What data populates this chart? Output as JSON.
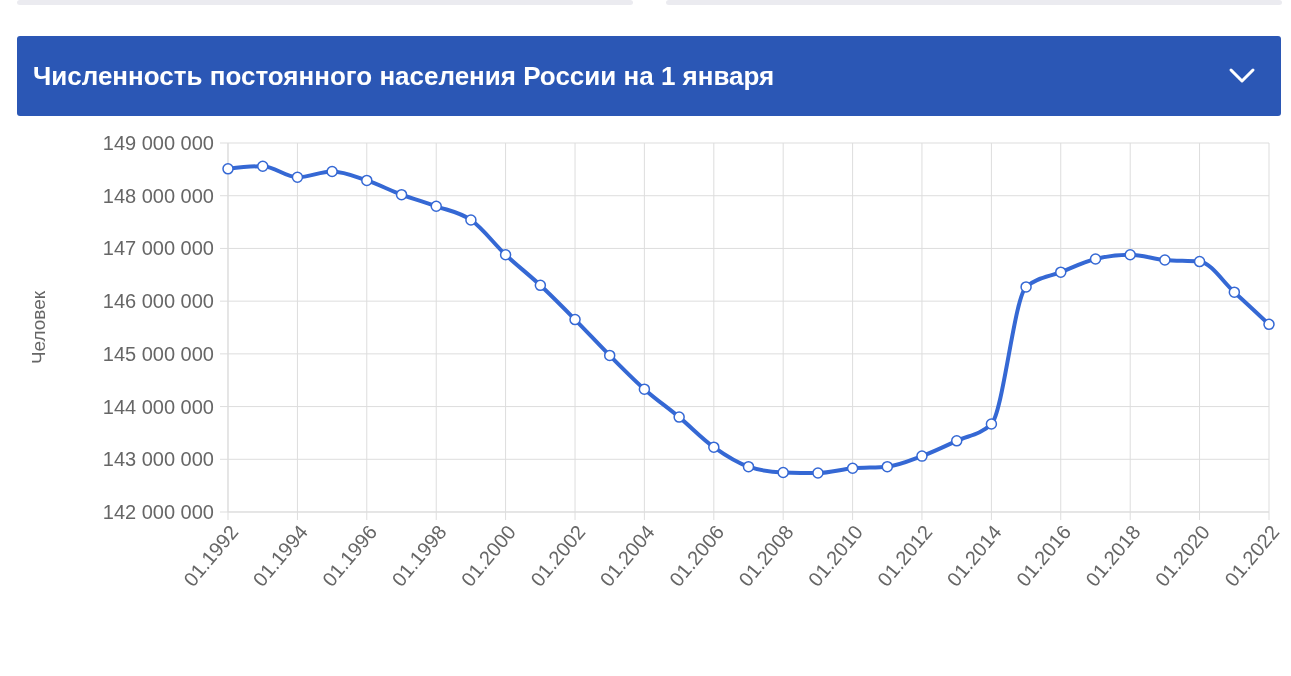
{
  "chart_data": {
    "type": "line",
    "title": "Численность постоянного населения России на 1 января",
    "ylabel": "Человек",
    "x": [
      "1992-01",
      "1993-01",
      "1994-01",
      "1995-01",
      "1996-01",
      "1997-01",
      "1998-01",
      "1999-01",
      "2000-01",
      "2001-01",
      "2002-01",
      "2003-01",
      "2004-01",
      "2005-01",
      "2006-01",
      "2007-01",
      "2008-01",
      "2009-01",
      "2010-01",
      "2011-01",
      "2012-01",
      "2013-01",
      "2014-01",
      "2015-01",
      "2016-01",
      "2017-01",
      "2018-01",
      "2019-01",
      "2020-01",
      "2021-01",
      "2022-01"
    ],
    "series": [
      {
        "color": "#3568d4",
        "values": [
          148510000,
          148560000,
          148350000,
          148460000,
          148290000,
          148020000,
          147800000,
          147540000,
          146880000,
          146300000,
          145650000,
          144970000,
          144330000,
          143800000,
          143230000,
          142860000,
          142750000,
          142740000,
          142830000,
          142860000,
          143060000,
          143350000,
          143670000,
          146270000,
          146550000,
          146800000,
          146880000,
          146780000,
          146750000,
          146170000,
          145560000
        ]
      }
    ],
    "xlim": [
      "1992-01",
      "2022-01"
    ],
    "xticks": [
      {
        "value": "1992-01",
        "label": "01.1992"
      },
      {
        "value": "1994-01",
        "label": "01.1994"
      },
      {
        "value": "1996-01",
        "label": "01.1996"
      },
      {
        "value": "1998-01",
        "label": "01.1998"
      },
      {
        "value": "2000-01",
        "label": "01.2000"
      },
      {
        "value": "2002-01",
        "label": "01.2002"
      },
      {
        "value": "2004-01",
        "label": "01.2004"
      },
      {
        "value": "2006-01",
        "label": "01.2006"
      },
      {
        "value": "2008-01",
        "label": "01.2008"
      },
      {
        "value": "2010-01",
        "label": "01.2010"
      },
      {
        "value": "2012-01",
        "label": "01.2012"
      },
      {
        "value": "2014-01",
        "label": "01.2014"
      },
      {
        "value": "2016-01",
        "label": "01.2016"
      },
      {
        "value": "2018-01",
        "label": "01.2018"
      },
      {
        "value": "2020-01",
        "label": "01.2020"
      },
      {
        "value": "2022-01",
        "label": "01.2022"
      }
    ],
    "ylim": [
      142000000,
      149000000
    ],
    "yticks": [
      {
        "value": 142000000,
        "label": "142 000 000"
      },
      {
        "value": 143000000,
        "label": "143 000 000"
      },
      {
        "value": 144000000,
        "label": "144 000 000"
      },
      {
        "value": 145000000,
        "label": "145 000 000"
      },
      {
        "value": 146000000,
        "label": "146 000 000"
      },
      {
        "value": 147000000,
        "label": "147 000 000"
      },
      {
        "value": 148000000,
        "label": "148 000 000"
      },
      {
        "value": 149000000,
        "label": "149 000 000"
      }
    ],
    "grid": true,
    "marker": "circle",
    "line_style": "solid"
  }
}
